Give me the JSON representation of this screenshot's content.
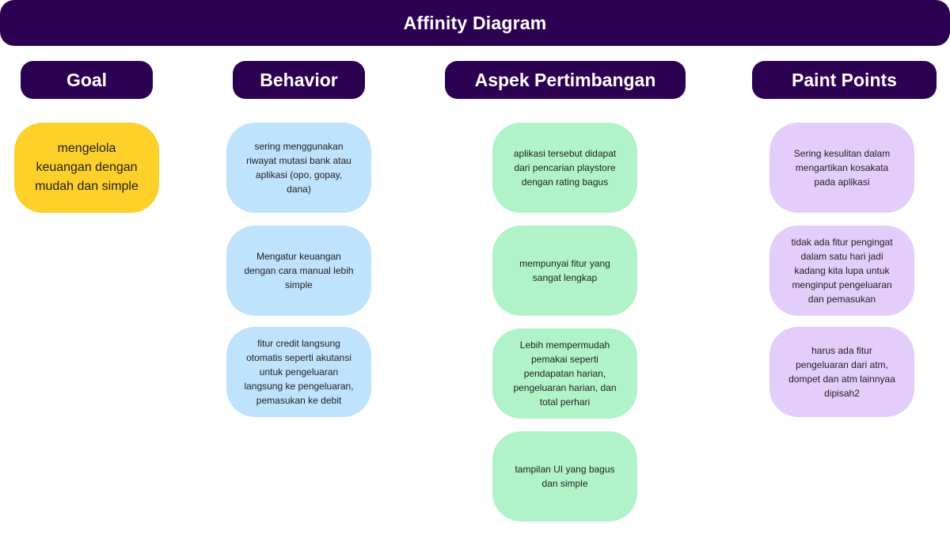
{
  "title": "Affinity Diagram",
  "columns": {
    "goal": {
      "header": "Goal",
      "notes": [
        "mengelola\nkeuangan dengan\nmudah dan simple"
      ],
      "color": "#fdd02a"
    },
    "behavior": {
      "header": "Behavior",
      "notes": [
        "sering menggunakan\nriwayat mutasi bank atau\naplikasi  (opo, gopay,\ndana)",
        "Mengatur keuangan\ndengan cara manual lebih\nsimple",
        "fitur credit langsung\notomatis seperti akutansi\nuntuk pengeluaran\nlangsung ke pengeluaran,\npemasukan ke debit"
      ],
      "color": "#bfe2fd"
    },
    "aspek": {
      "header": "Aspek Pertimbangan",
      "notes": [
        "aplikasi tersebut didapat\ndari pencarian playstore\ndengan rating bagus",
        "mempunyai fitur yang\nsangat lengkap",
        "Lebih mempermudah\npemakai seperti\npendapatan harian,\npengeluaran harian, dan\ntotal perhari",
        "tampilan UI yang bagus\ndan simple"
      ],
      "color": "#b0f3c8"
    },
    "pain": {
      "header": "Paint Points",
      "notes": [
        "Sering kesulitan dalam\nmengartikan kosakata\npada aplikasi",
        "tidak ada fitur pengingat\ndalam satu hari jadi\nkadang kita lupa untuk\nmenginput pengeluaran\ndan pemasukan",
        "harus ada fitur\npengeluaran dari atm,\ndompet dan atm lainnyaa\ndipisah2"
      ],
      "color": "#e3cdfb"
    }
  },
  "accent_color": "#2d0152"
}
